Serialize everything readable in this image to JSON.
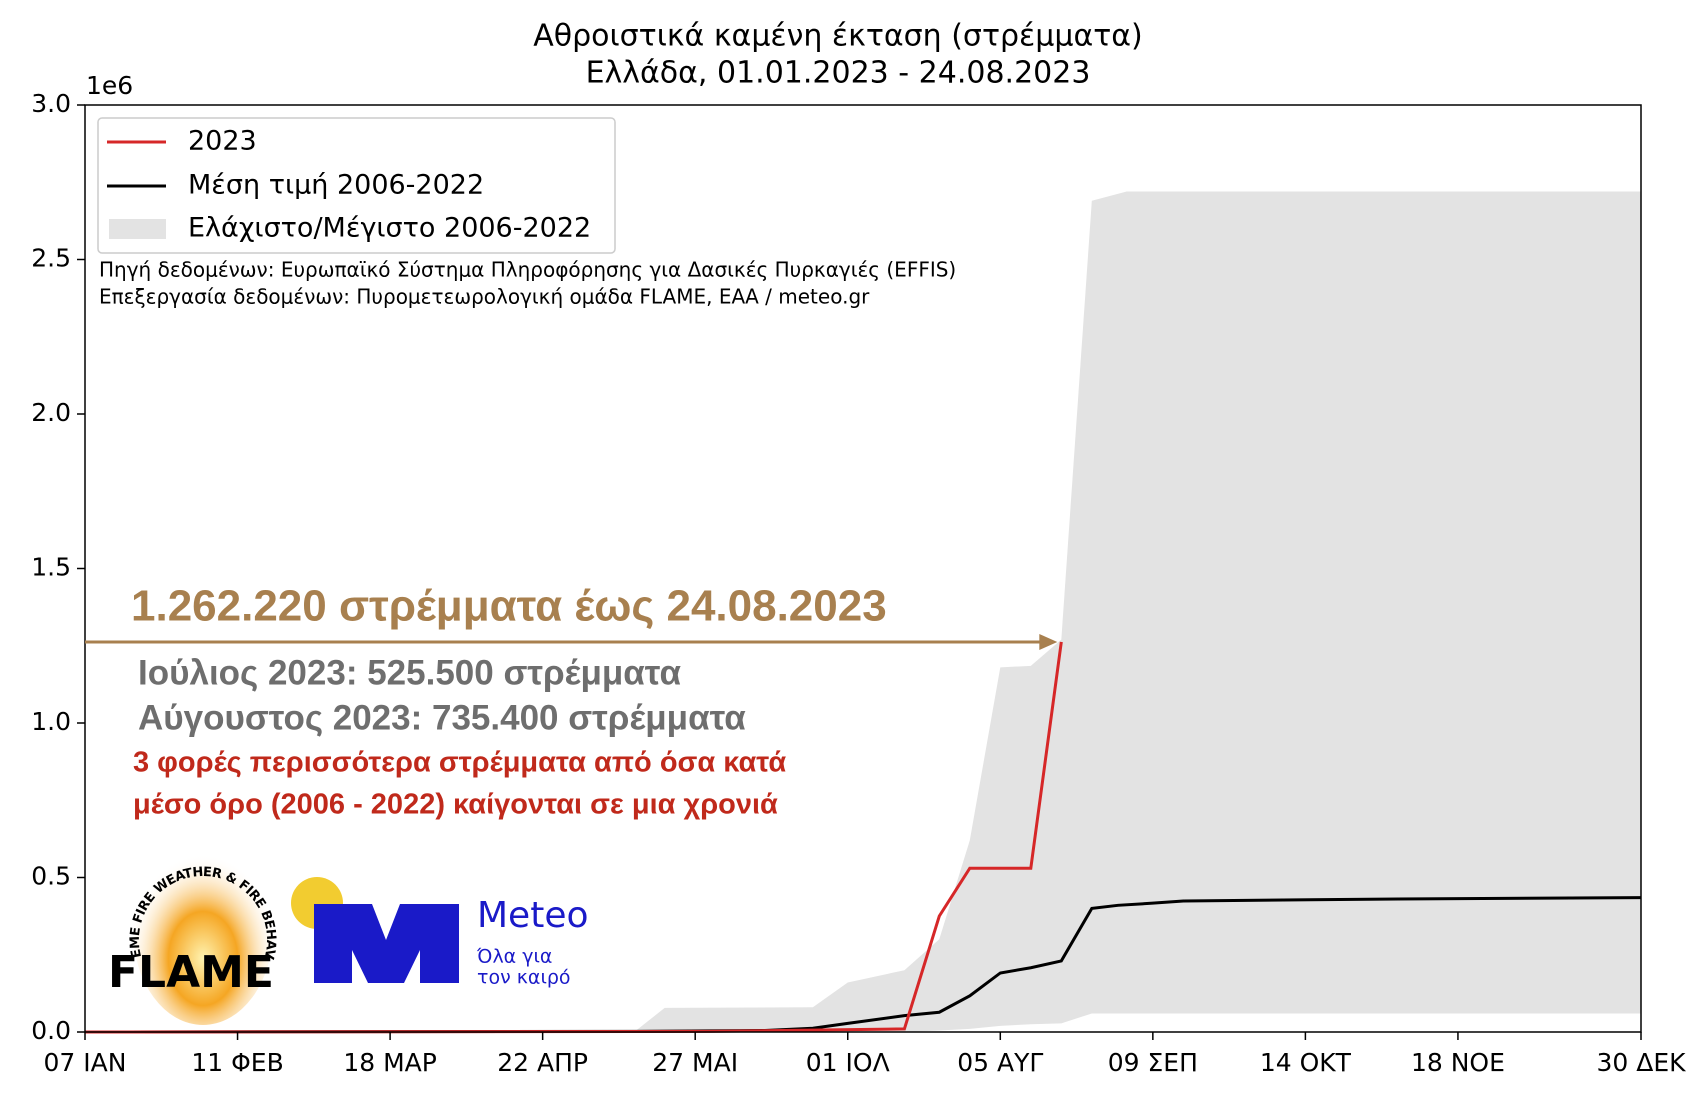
{
  "chart_data": {
    "type": "line",
    "title": "Αθροιστικά καμένη έκταση (στρέμματα)",
    "subtitle": "Ελλάδα, 01.01.2023 - 24.08.2023",
    "y_offset_label": "1e6",
    "xlim": [
      7,
      364
    ],
    "xticks": [
      {
        "value": 7,
        "label": "07 ΙΑΝ"
      },
      {
        "value": 42,
        "label": "11 ΦΕΒ"
      },
      {
        "value": 77,
        "label": "18 ΜΑΡ"
      },
      {
        "value": 112,
        "label": "22 ΑΠΡ"
      },
      {
        "value": 147,
        "label": "27 ΜΑΙ"
      },
      {
        "value": 182,
        "label": "01 ΙΟΛ"
      },
      {
        "value": 217,
        "label": "05 ΑΥΓ"
      },
      {
        "value": 252,
        "label": "09 ΣΕΠ"
      },
      {
        "value": 287,
        "label": "14 ΟΚΤ"
      },
      {
        "value": 322,
        "label": "18 ΝΟΕ"
      },
      {
        "value": 364,
        "label": "30 ΔΕΚ"
      }
    ],
    "ylim": [
      0,
      3000000
    ],
    "yticks": [
      {
        "value": 0,
        "label": "0.0"
      },
      {
        "value": 500000,
        "label": "0.5"
      },
      {
        "value": 1000000,
        "label": "1.0"
      },
      {
        "value": 1500000,
        "label": "1.5"
      },
      {
        "value": 2000000,
        "label": "2.0"
      },
      {
        "value": 2500000,
        "label": "2.5"
      },
      {
        "value": 3000000,
        "label": "3.0"
      }
    ],
    "legend_position": "upper left",
    "series": [
      {
        "name": "2023",
        "color": "#d62728",
        "x": [
          7,
          150,
          195,
          203,
          210,
          224,
          231
        ],
        "values": [
          0,
          2000,
          10000,
          375000,
          530000,
          530000,
          1262220
        ]
      },
      {
        "name": "Μέση τιμή 2006-2022",
        "color": "#000000",
        "x": [
          7,
          133,
          163,
          174,
          182,
          195,
          203,
          210,
          217,
          224,
          231,
          238,
          244,
          252,
          259,
          288,
          313,
          364
        ],
        "values": [
          0,
          2000,
          5000,
          12000,
          28000,
          53000,
          64000,
          117000,
          191000,
          208000,
          230000,
          400000,
          410000,
          417000,
          424000,
          428000,
          431000,
          435000
        ]
      }
    ],
    "band": {
      "name": "Ελάχιστο/Μέγιστο 2006-2022",
      "color": "#e3e3e3",
      "x": [
        7,
        133,
        140,
        174,
        182,
        195,
        203,
        210,
        217,
        224,
        231,
        238,
        246,
        252,
        364
      ],
      "upper": [
        0,
        0,
        78000,
        80000,
        160000,
        200000,
        300000,
        620000,
        1180000,
        1185000,
        1270000,
        2690000,
        2720000,
        2720000,
        2720000
      ],
      "lower": [
        0,
        0,
        0,
        0,
        0,
        0,
        5000,
        10000,
        20000,
        25000,
        28000,
        60000,
        60000,
        60000,
        60000
      ]
    },
    "source_lines": [
      "Πηγή δεδομένων: Ευρωπαϊκό Σύστημα Πληροφόρησης για Δασικές Πυρκαγιές (EFFIS)",
      "Επεξεργασία δεδομένων: Πυρομετεωρολογική ομάδα FLAME, ΕΑΑ / meteo.gr"
    ],
    "annotations": {
      "headline": "1.262.220 στρέμματα έως 24.08.2023",
      "months": [
        "Ιούλιος 2023: 525.500 στρέμματα",
        "Αύγουστος 2023: 735.400 στρέμματα"
      ],
      "comparison": [
        "3 φορές περισσότερα στρέμματα από όσα κατά",
        "μέσο όρο (2006 - 2022) καίγονται σε μια χρονιά"
      ]
    },
    "logos": {
      "flame_ring": "EXTREME FIRE WEATHER & FIRE BEHAVIOUR",
      "flame": "FLAME",
      "meteo": "Meteo",
      "meteo_tagline": [
        "Όλα για",
        "τον καιρό"
      ]
    }
  }
}
